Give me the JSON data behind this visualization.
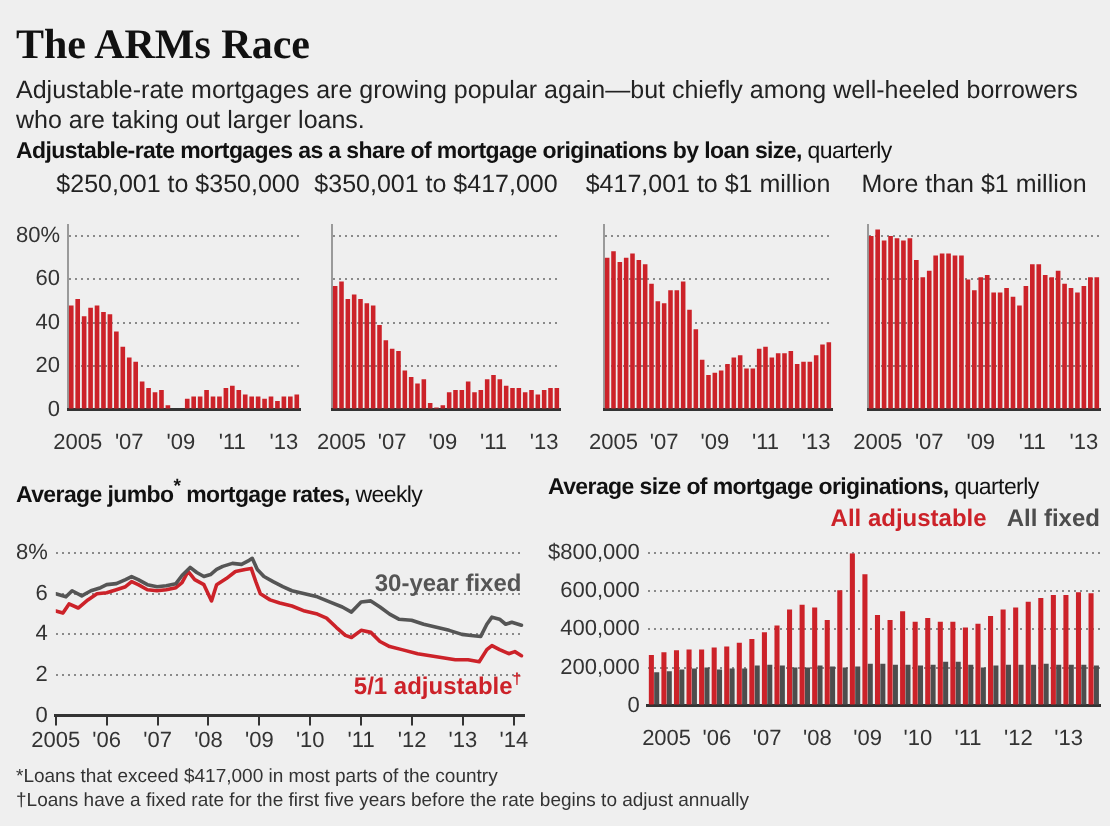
{
  "chart_data": [
    {
      "type": "other",
      "title": "The ARMs Race",
      "subtitle": "Adjustable-rate mortgages are growing popular again—but chiefly among well-heeled borrowers who are taking out larger loans.",
      "annotations": [
        "*Loans that exceed $417,000 in most parts of the country",
        "†Loans have a fixed rate for the first five years before the rate begins to adjust annually"
      ]
    },
    {
      "type": "bar",
      "title": "Adjustable-rate mortgages as a share of mortgage originations by loan size, quarterly",
      "subtitle": "$250,001 to $350,000",
      "categories": [
        null,
        "2005",
        null,
        null,
        null,
        null,
        null,
        null,
        null,
        "'07",
        null,
        null,
        null,
        null,
        null,
        null,
        null,
        "'09",
        null,
        null,
        null,
        null,
        null,
        null,
        null,
        "'11",
        null,
        null,
        null,
        null,
        null,
        null,
        null,
        "'13",
        null,
        null
      ],
      "values": [
        48,
        51,
        43,
        47,
        48,
        45,
        44,
        36,
        29,
        24,
        22,
        13,
        10,
        8,
        9,
        2,
        0.5,
        0.5,
        5,
        6,
        6,
        9,
        6,
        6,
        10,
        11,
        9,
        7,
        6,
        6,
        5,
        6,
        4,
        6,
        6,
        7
      ],
      "color": "#cc2229",
      "ylim": [
        0,
        85
      ],
      "yticks": [
        0,
        20,
        40,
        60,
        {
          "value": 80,
          "label": "80%"
        }
      ],
      "grid": "y"
    },
    {
      "type": "bar",
      "subtitle": "$350,001 to $417,000",
      "categories": [
        null,
        "2005",
        null,
        null,
        null,
        null,
        null,
        null,
        null,
        "'07",
        null,
        null,
        null,
        null,
        null,
        null,
        null,
        "'09",
        null,
        null,
        null,
        null,
        null,
        null,
        null,
        "'11",
        null,
        null,
        null,
        null,
        null,
        null,
        null,
        "'13",
        null,
        null
      ],
      "values": [
        57,
        59,
        51,
        53,
        51,
        49,
        48,
        39,
        32,
        28,
        27,
        18,
        15,
        12,
        14,
        3,
        1,
        2,
        8,
        9,
        9,
        13,
        8,
        9,
        14,
        16,
        14,
        11,
        10,
        10,
        8,
        9,
        7,
        9,
        10,
        10
      ],
      "color": "#cc2229",
      "ylim": [
        0,
        85
      ],
      "yticks": [
        0,
        20,
        40,
        60,
        80
      ],
      "grid": "y",
      "tick_labels": "x"
    },
    {
      "type": "bar",
      "subtitle": "$417,001 to $1 million",
      "categories": [
        null,
        "2005",
        null,
        null,
        null,
        null,
        null,
        null,
        null,
        "'07",
        null,
        null,
        null,
        null,
        null,
        null,
        null,
        "'09",
        null,
        null,
        null,
        null,
        null,
        null,
        null,
        "'11",
        null,
        null,
        null,
        null,
        null,
        null,
        null,
        "'13",
        null,
        null
      ],
      "values": [
        70,
        73,
        68,
        70,
        72,
        69,
        67,
        58,
        50,
        49,
        55,
        55,
        59,
        46,
        37,
        23,
        16,
        17,
        18,
        21,
        24,
        25,
        19,
        19,
        28,
        29,
        24,
        26,
        26,
        27,
        21,
        22,
        22,
        25,
        30,
        31
      ],
      "color": "#cc2229",
      "ylim": [
        0,
        85
      ],
      "yticks": [
        0,
        20,
        40,
        60,
        80
      ],
      "grid": "y",
      "tick_labels": "x"
    },
    {
      "type": "bar",
      "subtitle": "More than $1 million",
      "categories": [
        null,
        "2005",
        null,
        null,
        null,
        null,
        null,
        null,
        null,
        "'07",
        null,
        null,
        null,
        null,
        null,
        null,
        null,
        "'09",
        null,
        null,
        null,
        null,
        null,
        null,
        null,
        "'11",
        null,
        null,
        null,
        null,
        null,
        null,
        null,
        "'13",
        null,
        null
      ],
      "values": [
        80,
        83,
        78,
        80,
        79,
        78,
        79,
        69,
        61,
        64,
        71,
        72,
        72,
        71,
        71,
        60,
        55,
        61,
        62,
        54,
        54,
        56,
        52,
        48,
        57,
        67,
        67,
        62,
        61,
        64,
        58,
        56,
        54,
        57,
        61,
        61
      ],
      "color": "#cc2229",
      "ylim": [
        0,
        85
      ],
      "yticks": [
        0,
        20,
        40,
        60,
        80
      ],
      "grid": "y",
      "tick_labels": "x"
    },
    {
      "type": "line",
      "title": "Average jumbo$^{*}$ mortgage rates, weekly",
      "xlim": [
        2005,
        2014.2
      ],
      "xticks": [
        2005,
        {
          "value": 2006,
          "label": "'06"
        },
        {
          "value": 2007,
          "label": "'07"
        },
        {
          "value": 2008,
          "label": "'08"
        },
        {
          "value": 2009,
          "label": "'09"
        },
        {
          "value": 2010,
          "label": "'10"
        },
        {
          "value": 2011,
          "label": "'11"
        },
        {
          "value": 2012,
          "label": "'12"
        },
        {
          "value": 2013,
          "label": "'13"
        },
        {
          "value": 2014,
          "label": "'14"
        }
      ],
      "ylim": [
        0,
        8
      ],
      "yticks": [
        0,
        2,
        4,
        6,
        {
          "value": 8,
          "label": "8%"
        }
      ],
      "grid": "y",
      "series": [
        {
          "name": "30-year fixed",
          "color": "#555555",
          "x": [
            2005.0,
            2005.2,
            2005.32,
            2005.51,
            2005.69,
            2005.88,
            2006.0,
            2006.19,
            2006.37,
            2006.49,
            2006.62,
            2006.8,
            2006.99,
            2007.17,
            2007.36,
            2007.48,
            2007.64,
            2007.77,
            2007.91,
            2008.04,
            2008.16,
            2008.28,
            2008.47,
            2008.65,
            2008.8,
            2008.86,
            2008.96,
            2009.09,
            2009.27,
            2009.46,
            2009.64,
            2009.89,
            2010.14,
            2010.38,
            2010.63,
            2010.81,
            2011.0,
            2011.19,
            2011.37,
            2011.56,
            2011.74,
            2011.99,
            2012.23,
            2012.48,
            2012.73,
            2012.98,
            2013.16,
            2013.35,
            2013.47,
            2013.57,
            2013.72,
            2013.84,
            2013.96,
            2014.15
          ],
          "values": [
            6.0,
            5.85,
            6.15,
            5.9,
            6.15,
            6.3,
            6.45,
            6.5,
            6.7,
            6.85,
            6.7,
            6.45,
            6.35,
            6.4,
            6.5,
            6.9,
            7.3,
            7.05,
            6.85,
            6.95,
            7.2,
            7.35,
            7.5,
            7.45,
            7.65,
            7.75,
            7.2,
            6.85,
            6.6,
            6.35,
            6.15,
            6.0,
            5.85,
            5.6,
            5.35,
            5.1,
            5.6,
            5.65,
            5.35,
            5.0,
            4.75,
            4.7,
            4.5,
            4.35,
            4.2,
            4.0,
            3.95,
            3.9,
            4.5,
            4.85,
            4.75,
            4.5,
            4.6,
            4.45
          ]
        },
        {
          "name": "5/1 adjustable$^{†}$",
          "color": "#cc2229",
          "x": [
            2005.0,
            2005.14,
            2005.26,
            2005.44,
            2005.63,
            2005.81,
            2006.0,
            2006.19,
            2006.37,
            2006.49,
            2006.62,
            2006.8,
            2006.99,
            2007.17,
            2007.36,
            2007.48,
            2007.6,
            2007.73,
            2007.91,
            2008.06,
            2008.16,
            2008.35,
            2008.53,
            2008.72,
            2008.84,
            2008.93,
            2009.02,
            2009.21,
            2009.4,
            2009.64,
            2009.89,
            2010.14,
            2010.32,
            2010.51,
            2010.69,
            2010.81,
            2011.0,
            2011.19,
            2011.37,
            2011.56,
            2011.8,
            2012.11,
            2012.48,
            2012.85,
            2013.1,
            2013.32,
            2013.47,
            2013.57,
            2013.72,
            2013.9,
            2014.02,
            2014.15
          ],
          "values": [
            5.15,
            5.05,
            5.5,
            5.3,
            5.7,
            6.0,
            6.05,
            6.2,
            6.35,
            6.6,
            6.45,
            6.2,
            6.15,
            6.2,
            6.3,
            6.55,
            7.1,
            6.7,
            6.45,
            5.65,
            6.45,
            6.75,
            7.1,
            7.2,
            7.25,
            6.6,
            6.0,
            5.7,
            5.55,
            5.4,
            5.15,
            5.0,
            4.8,
            4.35,
            3.95,
            3.85,
            4.2,
            4.1,
            3.65,
            3.4,
            3.25,
            3.05,
            2.9,
            2.75,
            2.75,
            2.65,
            3.25,
            3.45,
            3.25,
            3.05,
            3.15,
            2.95
          ]
        }
      ]
    },
    {
      "type": "bar",
      "title": "Average size of mortgage originations, quarterly",
      "categories": [
        null,
        "2005",
        null,
        null,
        null,
        "'06",
        null,
        null,
        null,
        "'07",
        null,
        null,
        null,
        "'08",
        null,
        null,
        null,
        "'09",
        null,
        null,
        null,
        "'10",
        null,
        null,
        null,
        "'11",
        null,
        null,
        null,
        "'12",
        null,
        null,
        null,
        "'13",
        null,
        null
      ],
      "ylim": [
        0,
        800000
      ],
      "yticks": [
        0,
        {
          "value": 200000,
          "label": "200,000"
        },
        {
          "value": 400000,
          "label": "400,000"
        },
        {
          "value": 600000,
          "label": "600,000"
        },
        {
          "value": 800000,
          "label": "$800,000"
        }
      ],
      "grid": "y",
      "legend": "top right",
      "series": [
        {
          "name": "All adjustable",
          "color": "#cc2229",
          "values": [
            265000,
            280000,
            290000,
            295000,
            295000,
            305000,
            310000,
            330000,
            350000,
            385000,
            420000,
            505000,
            530000,
            515000,
            450000,
            605000,
            800000,
            690000,
            475000,
            450000,
            495000,
            440000,
            460000,
            440000,
            440000,
            410000,
            430000,
            470000,
            505000,
            515000,
            545000,
            565000,
            580000,
            580000,
            595000,
            590000
          ]
        },
        {
          "name": "All fixed",
          "color": "#4d4d4d",
          "values": [
            175000,
            180000,
            190000,
            195000,
            200000,
            190000,
            195000,
            195000,
            210000,
            215000,
            210000,
            200000,
            200000,
            210000,
            205000,
            200000,
            205000,
            220000,
            220000,
            215000,
            215000,
            210000,
            215000,
            230000,
            230000,
            215000,
            200000,
            210000,
            215000,
            215000,
            215000,
            220000,
            215000,
            215000,
            215000,
            210000
          ]
        }
      ]
    }
  ]
}
